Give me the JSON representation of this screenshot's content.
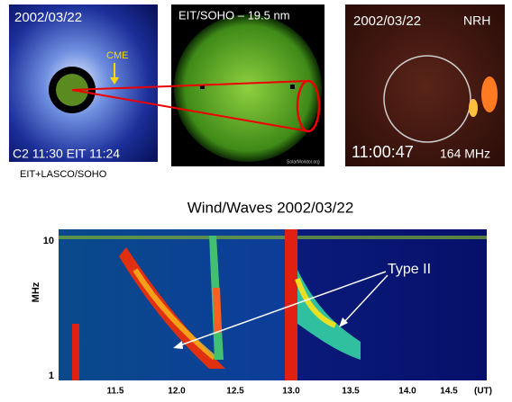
{
  "panels": [
    {
      "top_label": "2002/03/22",
      "annotation": "CME",
      "bottom_label": "C2 11:30 EIT 11:24",
      "caption": "EIT+LASCO/SOHO"
    },
    {
      "top_label": "EIT/SOHO – 19.5 nm",
      "credit": "SolarMonitor.org"
    },
    {
      "top_label": "2002/03/22",
      "instrument": "NRH",
      "bottom_label": "11:00:47",
      "frequency": "164 MHz"
    }
  ],
  "spectrogram": {
    "title": "Wind/Waves 2002/03/22",
    "y_label": "MHz",
    "y_ticks": [
      "10",
      "1"
    ],
    "x_ticks": [
      "11.5",
      "12.0",
      "12.5",
      "13.0",
      "13.5",
      "14.0",
      "14.5"
    ],
    "x_unit": "(UT)",
    "annotation": "Type II"
  }
}
